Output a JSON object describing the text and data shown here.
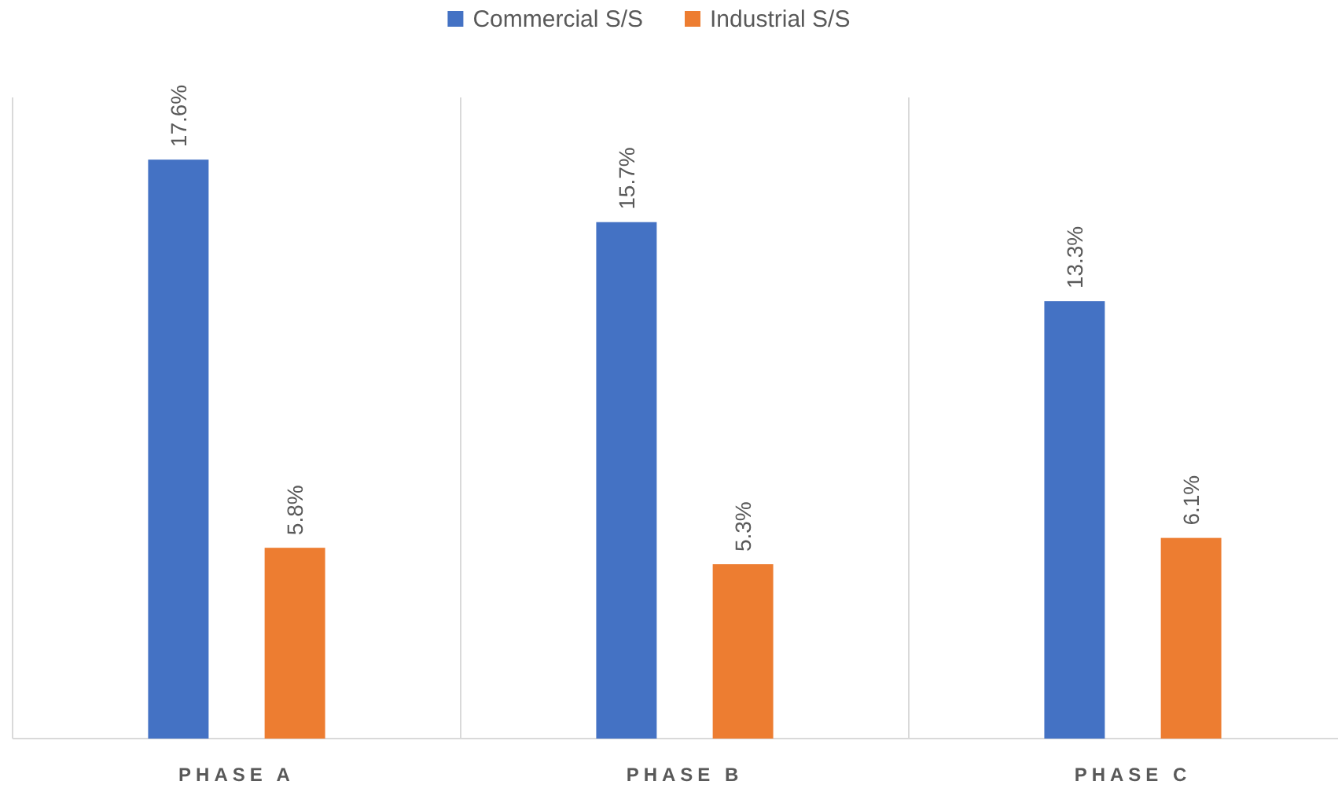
{
  "chart_data": {
    "type": "bar",
    "categories": [
      "PHASE A",
      "PHASE B",
      "PHASE C"
    ],
    "series": [
      {
        "name": "Commercial S/S",
        "color": "#4472c4",
        "values": [
          17.6,
          15.7,
          13.3
        ],
        "value_labels": [
          "17.6%",
          "15.7%",
          "13.3%"
        ]
      },
      {
        "name": "Industrial S/S",
        "color": "#ed7d31",
        "values": [
          5.8,
          5.3,
          6.1
        ],
        "value_labels": [
          "5.8%",
          "5.3%",
          "6.1%"
        ]
      }
    ],
    "legend": "top",
    "grid": "x"
  }
}
